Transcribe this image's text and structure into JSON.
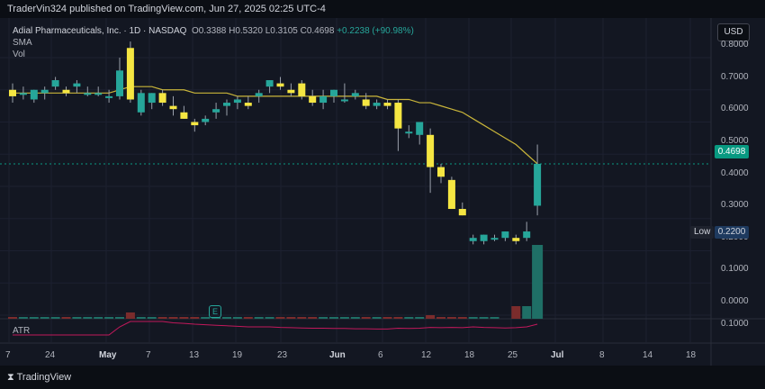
{
  "header": {
    "publisher": "TraderVin324 published on TradingView.com, Jun 27, 2025 02:25 UTC-4"
  },
  "legend": {
    "symbol": "Adial Pharmaceuticals, Inc. · 1D · NASDAQ",
    "ohlc": "O0.3388 H0.5320 L0.3105 C0.4698",
    "change": "+0.2238 (+90.98%)",
    "sma": "SMA",
    "vol": "Vol"
  },
  "currency": "USD",
  "price_axis": [
    "0.8000",
    "0.7000",
    "0.6000",
    "0.5000",
    "0.4000",
    "0.3000",
    "0.2000",
    "0.1000",
    "0.0000"
  ],
  "current_price": "0.4698",
  "low_label": "Low",
  "low_value": "0.2200",
  "atr": {
    "label": "ATR",
    "value": "0.1000"
  },
  "date_axis": [
    {
      "label": "7",
      "bold": false
    },
    {
      "label": "24",
      "bold": false
    },
    {
      "label": "May",
      "bold": true
    },
    {
      "label": "7",
      "bold": false
    },
    {
      "label": "13",
      "bold": false
    },
    {
      "label": "19",
      "bold": false
    },
    {
      "label": "23",
      "bold": false
    },
    {
      "label": "Jun",
      "bold": true
    },
    {
      "label": "6",
      "bold": false
    },
    {
      "label": "12",
      "bold": false
    },
    {
      "label": "18",
      "bold": false
    },
    {
      "label": "25",
      "bold": false
    },
    {
      "label": "Jul",
      "bold": true
    },
    {
      "label": "8",
      "bold": false
    },
    {
      "label": "14",
      "bold": false
    },
    {
      "label": "18",
      "bold": false
    }
  ],
  "earnings_badge": "E",
  "footer": {
    "brand": "TradingView"
  },
  "colors": {
    "up": "#26a69a",
    "down": "#f5e642",
    "sma": "#c9b53a",
    "atr": "#c2185b",
    "vol_up": "#1f6f66",
    "vol_down": "#7b2c2c"
  },
  "chart_data": {
    "type": "candlestick",
    "ylim": [
      0.0,
      0.8
    ],
    "candles": [
      {
        "o": 0.7,
        "h": 0.72,
        "l": 0.66,
        "c": 0.68
      },
      {
        "o": 0.69,
        "h": 0.71,
        "l": 0.67,
        "c": 0.69
      },
      {
        "o": 0.67,
        "h": 0.7,
        "l": 0.66,
        "c": 0.7
      },
      {
        "o": 0.69,
        "h": 0.71,
        "l": 0.67,
        "c": 0.7
      },
      {
        "o": 0.71,
        "h": 0.74,
        "l": 0.7,
        "c": 0.73
      },
      {
        "o": 0.7,
        "h": 0.71,
        "l": 0.68,
        "c": 0.69
      },
      {
        "o": 0.71,
        "h": 0.73,
        "l": 0.69,
        "c": 0.72
      },
      {
        "o": 0.69,
        "h": 0.71,
        "l": 0.68,
        "c": 0.69
      },
      {
        "o": 0.69,
        "h": 0.71,
        "l": 0.68,
        "c": 0.69
      },
      {
        "o": 0.68,
        "h": 0.7,
        "l": 0.66,
        "c": 0.68
      },
      {
        "o": 0.68,
        "h": 0.8,
        "l": 0.67,
        "c": 0.76
      },
      {
        "o": 0.83,
        "h": 0.85,
        "l": 0.66,
        "c": 0.67
      },
      {
        "o": 0.63,
        "h": 0.7,
        "l": 0.62,
        "c": 0.69
      },
      {
        "o": 0.66,
        "h": 0.69,
        "l": 0.64,
        "c": 0.69
      },
      {
        "o": 0.69,
        "h": 0.7,
        "l": 0.65,
        "c": 0.66
      },
      {
        "o": 0.65,
        "h": 0.68,
        "l": 0.62,
        "c": 0.64
      },
      {
        "o": 0.63,
        "h": 0.65,
        "l": 0.61,
        "c": 0.61
      },
      {
        "o": 0.6,
        "h": 0.61,
        "l": 0.57,
        "c": 0.59
      },
      {
        "o": 0.6,
        "h": 0.62,
        "l": 0.59,
        "c": 0.61
      },
      {
        "o": 0.63,
        "h": 0.66,
        "l": 0.61,
        "c": 0.64
      },
      {
        "o": 0.65,
        "h": 0.67,
        "l": 0.62,
        "c": 0.66
      },
      {
        "o": 0.66,
        "h": 0.68,
        "l": 0.64,
        "c": 0.67
      },
      {
        "o": 0.66,
        "h": 0.68,
        "l": 0.64,
        "c": 0.65
      },
      {
        "o": 0.68,
        "h": 0.7,
        "l": 0.66,
        "c": 0.69
      },
      {
        "o": 0.71,
        "h": 0.73,
        "l": 0.69,
        "c": 0.73
      },
      {
        "o": 0.72,
        "h": 0.74,
        "l": 0.7,
        "c": 0.71
      },
      {
        "o": 0.7,
        "h": 0.72,
        "l": 0.68,
        "c": 0.69
      },
      {
        "o": 0.72,
        "h": 0.73,
        "l": 0.67,
        "c": 0.68
      },
      {
        "o": 0.68,
        "h": 0.7,
        "l": 0.65,
        "c": 0.66
      },
      {
        "o": 0.66,
        "h": 0.7,
        "l": 0.64,
        "c": 0.68
      },
      {
        "o": 0.68,
        "h": 0.7,
        "l": 0.66,
        "c": 0.7
      },
      {
        "o": 0.67,
        "h": 0.72,
        "l": 0.66,
        "c": 0.67
      },
      {
        "o": 0.68,
        "h": 0.7,
        "l": 0.67,
        "c": 0.69
      },
      {
        "o": 0.67,
        "h": 0.69,
        "l": 0.64,
        "c": 0.65
      },
      {
        "o": 0.65,
        "h": 0.67,
        "l": 0.64,
        "c": 0.66
      },
      {
        "o": 0.66,
        "h": 0.67,
        "l": 0.64,
        "c": 0.65
      },
      {
        "o": 0.66,
        "h": 0.67,
        "l": 0.51,
        "c": 0.58
      },
      {
        "o": 0.57,
        "h": 0.59,
        "l": 0.55,
        "c": 0.57
      },
      {
        "o": 0.56,
        "h": 0.6,
        "l": 0.53,
        "c": 0.6
      },
      {
        "o": 0.56,
        "h": 0.58,
        "l": 0.38,
        "c": 0.46
      },
      {
        "o": 0.46,
        "h": 0.47,
        "l": 0.41,
        "c": 0.43
      },
      {
        "o": 0.42,
        "h": 0.43,
        "l": 0.33,
        "c": 0.33
      },
      {
        "o": 0.33,
        "h": 0.35,
        "l": 0.31,
        "c": 0.31
      },
      {
        "o": 0.23,
        "h": 0.25,
        "l": 0.22,
        "c": 0.24
      },
      {
        "o": 0.23,
        "h": 0.25,
        "l": 0.22,
        "c": 0.25
      },
      {
        "o": 0.24,
        "h": 0.25,
        "l": 0.23,
        "c": 0.24
      },
      {
        "o": 0.24,
        "h": 0.26,
        "l": 0.23,
        "c": 0.26
      },
      {
        "o": 0.24,
        "h": 0.25,
        "l": 0.22,
        "c": 0.23
      },
      {
        "o": 0.24,
        "h": 0.29,
        "l": 0.23,
        "c": 0.26
      },
      {
        "o": 0.34,
        "h": 0.53,
        "l": 0.31,
        "c": 0.47
      }
    ],
    "sma": [
      0.69,
      0.69,
      0.69,
      0.69,
      0.69,
      0.69,
      0.69,
      0.69,
      0.69,
      0.69,
      0.7,
      0.71,
      0.71,
      0.71,
      0.7,
      0.7,
      0.7,
      0.69,
      0.69,
      0.69,
      0.69,
      0.68,
      0.68,
      0.68,
      0.68,
      0.68,
      0.68,
      0.68,
      0.68,
      0.68,
      0.68,
      0.68,
      0.68,
      0.68,
      0.68,
      0.67,
      0.67,
      0.67,
      0.66,
      0.66,
      0.65,
      0.64,
      0.63,
      0.61,
      0.59,
      0.57,
      0.55,
      0.53,
      0.5,
      0.47
    ],
    "volume": [
      1,
      1,
      1,
      1,
      1,
      1,
      1,
      1,
      1,
      1,
      1,
      1,
      1,
      1,
      1,
      1,
      1,
      1,
      1,
      1,
      1,
      1,
      1,
      1,
      1,
      1,
      1,
      1,
      1,
      1,
      1,
      1,
      1,
      1,
      1,
      1,
      1,
      1,
      1,
      1,
      1,
      1,
      1,
      1,
      1,
      1,
      1,
      1,
      1,
      1
    ],
    "atr": [
      0.02,
      0.02,
      0.02,
      0.02,
      0.02,
      0.02,
      0.02,
      0.02,
      0.02,
      0.02,
      0.05,
      0.07,
      0.07,
      0.07,
      0.07,
      0.065,
      0.063,
      0.06,
      0.058,
      0.056,
      0.054,
      0.052,
      0.05,
      0.05,
      0.05,
      0.048,
      0.047,
      0.046,
      0.045,
      0.045,
      0.044,
      0.044,
      0.043,
      0.043,
      0.042,
      0.042,
      0.045,
      0.044,
      0.045,
      0.048,
      0.047,
      0.048,
      0.047,
      0.05,
      0.048,
      0.047,
      0.046,
      0.047,
      0.05,
      0.06
    ]
  }
}
